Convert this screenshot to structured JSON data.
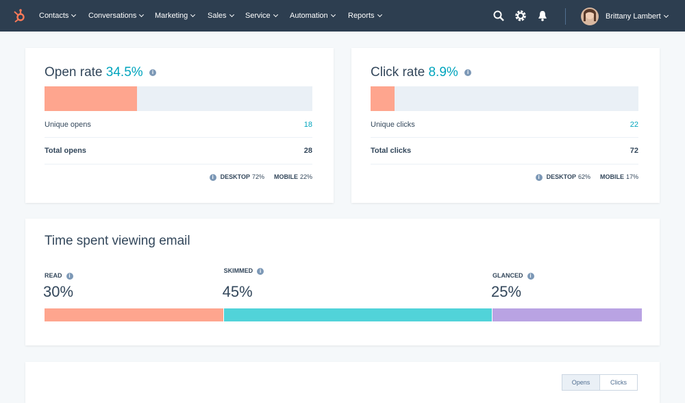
{
  "nav": {
    "items": [
      "Contacts",
      "Conversations",
      "Marketing",
      "Sales",
      "Service",
      "Automation",
      "Reports"
    ],
    "user": "Brittany Lambert"
  },
  "open_rate": {
    "title": "Open rate",
    "value": 34.5,
    "value_label": "34.5%",
    "rows": [
      {
        "label": "Unique opens",
        "value": "18"
      },
      {
        "label": "Total opens",
        "value": "28"
      }
    ],
    "devices": [
      {
        "label": "DESKTOP",
        "value": "72%"
      },
      {
        "label": "MOBILE",
        "value": "22%"
      }
    ]
  },
  "click_rate": {
    "title": "Click rate",
    "value": 8.9,
    "value_label": "8.9%",
    "rows": [
      {
        "label": "Unique clicks",
        "value": "22"
      },
      {
        "label": "Total clicks",
        "value": "72"
      }
    ],
    "devices": [
      {
        "label": "DESKTOP",
        "value": "62%"
      },
      {
        "label": "MOBILE",
        "value": "17%"
      }
    ]
  },
  "time_spent": {
    "title": "Time spent viewing email",
    "segments": [
      {
        "label": "READ",
        "value": 30,
        "value_label": "30%",
        "color": "#fea58e"
      },
      {
        "label": "SKIMMED",
        "value": 45,
        "value_label": "45%",
        "color": "#51d3d9"
      },
      {
        "label": "GLANCED",
        "value": 25,
        "value_label": "25%",
        "color": "#b9a3e3"
      }
    ]
  },
  "engagement": {
    "tabs": [
      "Opens",
      "Clicks"
    ]
  }
}
